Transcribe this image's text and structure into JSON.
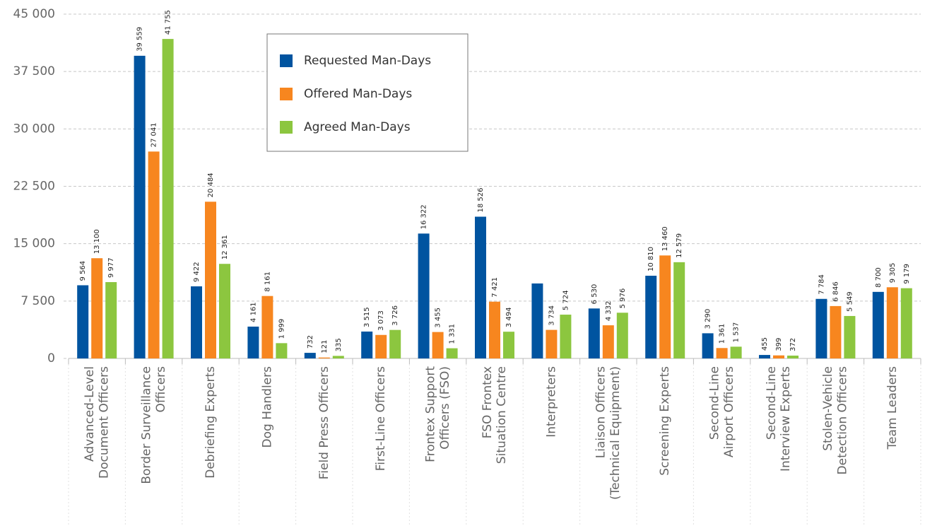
{
  "chart_data": {
    "type": "bar",
    "categories": [
      "Advanced-Level\nDocument Officers",
      "Border Surveillance\nOfficers",
      "Debriefing Experts",
      "Dog Handlers",
      "Field Press Officers",
      "First-Line Officers",
      "Frontex Support\nOfficers (FSO)",
      "FSO Frontex\nSituation Centre",
      "Interpreters",
      "Liaison Officers\n(Technical Equipment)",
      "Screening Experts",
      "Second-Line\nAirport Officers",
      "Second-Line\nInterview Experts",
      "Stolen-Vehicle\nDetection Officers",
      "Team Leaders"
    ],
    "series": [
      {
        "name": "Requested Man-Days",
        "color": "#0054a0",
        "values": [
          9564,
          39559,
          9422,
          4161,
          732,
          3515,
          16322,
          18526,
          9800,
          6530,
          10810,
          3290,
          455,
          7784,
          8700
        ],
        "value_labels": [
          "9 564",
          "39 559",
          "9 422",
          "4 161",
          "732",
          "3 515",
          "16 322",
          "18 526",
          null,
          "6 530",
          "10 810",
          "3 290",
          "455",
          "7 784",
          "8 700"
        ]
      },
      {
        "name": "Offered Man-Days",
        "color": "#f7861f",
        "values": [
          13100,
          27041,
          20484,
          8161,
          121,
          3073,
          3455,
          7421,
          3734,
          4332,
          13460,
          1361,
          399,
          6846,
          9305
        ],
        "value_labels": [
          "13 100",
          "27 041",
          "20 484",
          "8 161",
          "121",
          "3 073",
          "3 455",
          "7 421",
          "3 734",
          "4 332",
          "13 460",
          "1 361",
          "399",
          "6 846",
          "9 305"
        ]
      },
      {
        "name": "Agreed Man-Days",
        "color": "#8cc63f",
        "values": [
          9977,
          41755,
          12361,
          1999,
          335,
          3726,
          1331,
          3494,
          5724,
          5976,
          12579,
          1537,
          372,
          5549,
          9179
        ],
        "value_labels": [
          "9 977",
          "41 755",
          "12 361",
          "1 999",
          "335",
          "3 726",
          "1 331",
          "3 494",
          "5 724",
          "5 976",
          "12 579",
          "1 537",
          "372",
          "5 549",
          "9 179"
        ]
      }
    ],
    "ylim": [
      0,
      45000
    ],
    "yticks": [
      0,
      {
        "value": 7500,
        "label": "7 500"
      },
      {
        "value": 15000,
        "label": "15 000"
      },
      {
        "value": 22500,
        "label": "22 500"
      },
      {
        "value": 30000,
        "label": "30 000"
      },
      {
        "value": 37500,
        "label": "37 500"
      },
      {
        "value": 45000,
        "label": "45 000"
      }
    ],
    "grid": true,
    "legend": "top"
  }
}
